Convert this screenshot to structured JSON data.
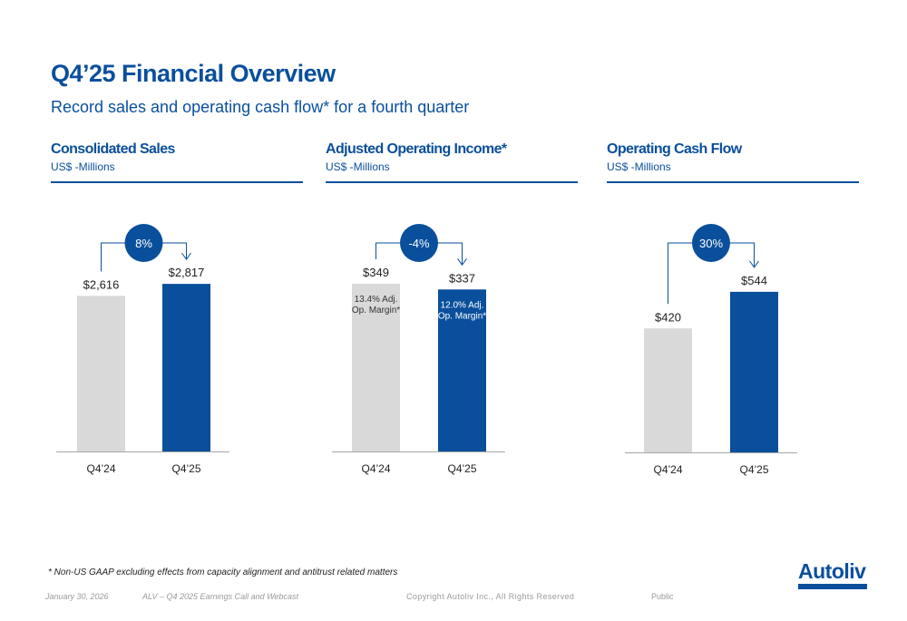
{
  "title": "Q4’25 Financial Overview",
  "subtitle": "Record sales and operating cash flow* for a fourth quarter",
  "colors": {
    "brand": "#0a4f9c",
    "prior": "#d9d9d9",
    "axis": "#a6a6a6",
    "text": "#222222"
  },
  "panels": [
    {
      "title": "Consolidated Sales",
      "unit": "US$ -Millions"
    },
    {
      "title": "Adjusted Operating Income*",
      "unit": "US$ -Millions"
    },
    {
      "title": "Operating Cash Flow",
      "unit": "US$ -Millions"
    }
  ],
  "chart_data": [
    {
      "type": "bar",
      "title": "Consolidated Sales",
      "ylabel": "US$ -Millions",
      "categories": [
        "Q4’24",
        "Q4’25"
      ],
      "values": [
        2616,
        2817
      ],
      "value_labels": [
        "$2,616",
        "$2,817"
      ],
      "bar_annotations": [
        "",
        ""
      ],
      "change_label": "8%",
      "ylim": [
        0,
        3200
      ]
    },
    {
      "type": "bar",
      "title": "Adjusted Operating Income*",
      "ylabel": "US$ -Millions",
      "categories": [
        "Q4’24",
        "Q4’25"
      ],
      "values": [
        349,
        337
      ],
      "value_labels": [
        "$349",
        "$337"
      ],
      "bar_annotations": [
        "13.4% Adj.\nOp. Margin*",
        "12.0% Adj.\nOp. Margin*"
      ],
      "change_label": "-4%",
      "ylim": [
        0,
        396
      ]
    },
    {
      "type": "bar",
      "title": "Operating Cash Flow",
      "ylabel": "US$ -Millions",
      "categories": [
        "Q4’24",
        "Q4’25"
      ],
      "values": [
        420,
        544
      ],
      "value_labels": [
        "$420",
        "$544"
      ],
      "bar_annotations": [
        "",
        ""
      ],
      "change_label": "30%",
      "ylim": [
        0,
        645
      ]
    }
  ],
  "footnote": "* Non-US GAAP excluding effects from capacity alignment and antitrust related matters",
  "footer": {
    "date": "January 30, 2026",
    "event": "ALV – Q4 2025 Earnings Call and Webcast",
    "copyright": "Copyright Autoliv Inc., All Rights Reserved",
    "classification": "Public"
  },
  "logo": {
    "text": "Autoliv"
  }
}
